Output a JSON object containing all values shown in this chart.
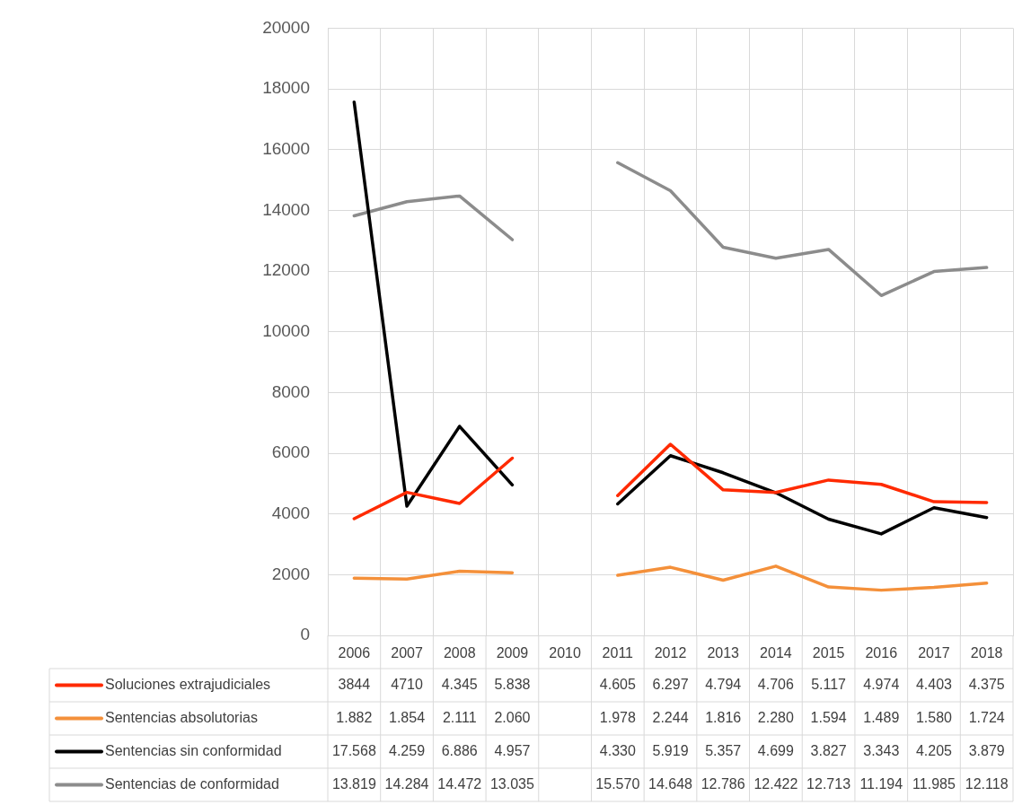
{
  "chart_data": {
    "type": "line",
    "categories": [
      "2006",
      "2007",
      "2008",
      "2009",
      "2010",
      "2011",
      "2012",
      "2013",
      "2014",
      "2015",
      "2016",
      "2017",
      "2018"
    ],
    "ylim": [
      0,
      20000
    ],
    "yticks": [
      0,
      2000,
      4000,
      6000,
      8000,
      10000,
      12000,
      14000,
      16000,
      18000,
      20000
    ],
    "grid": true,
    "legend": "bottom",
    "marker": "none",
    "series": [
      {
        "name": "Soluciones extrajudiciales",
        "color": "#ff2a00",
        "values": [
          3844,
          4710,
          4345,
          5838,
          null,
          4605,
          6297,
          4794,
          4706,
          5117,
          4974,
          4403,
          4375
        ],
        "value_labels": [
          "3844",
          "4710",
          "4.345",
          "5.838",
          null,
          "4.605",
          "6.297",
          "4.794",
          "4.706",
          "5.117",
          "4.974",
          "4.403",
          "4.375"
        ]
      },
      {
        "name": "Sentencias absolutorias",
        "color": "#f4903a",
        "values": [
          1882,
          1854,
          2111,
          2060,
          null,
          1978,
          2244,
          1816,
          2280,
          1594,
          1489,
          1580,
          1724
        ],
        "value_labels": [
          "1.882",
          "1.854",
          "2.111",
          "2.060",
          null,
          "1.978",
          "2.244",
          "1.816",
          "2.280",
          "1.594",
          "1.489",
          "1.580",
          "1.724"
        ]
      },
      {
        "name": "Sentencias sin conformidad",
        "color": "#000000",
        "values": [
          17568,
          4259,
          6886,
          4957,
          null,
          4330,
          5919,
          5357,
          4699,
          3827,
          3343,
          4205,
          3879
        ],
        "value_labels": [
          "17.568",
          "4.259",
          "6.886",
          "4.957",
          null,
          "4.330",
          "5.919",
          "5.357",
          "4.699",
          "3.827",
          "3.343",
          "4.205",
          "3.879"
        ]
      },
      {
        "name": "Sentencias de conformidad",
        "color": "#8c8c8c",
        "values": [
          13819,
          14284,
          14472,
          13035,
          null,
          15570,
          14648,
          12786,
          12422,
          12713,
          11194,
          11985,
          12118
        ],
        "value_labels": [
          "13.819",
          "14.284",
          "14.472",
          "13.035",
          null,
          "15.570",
          "14.648",
          "12.786",
          "12.422",
          "12.713",
          "11.194",
          "11.985",
          "12.118"
        ]
      }
    ]
  }
}
